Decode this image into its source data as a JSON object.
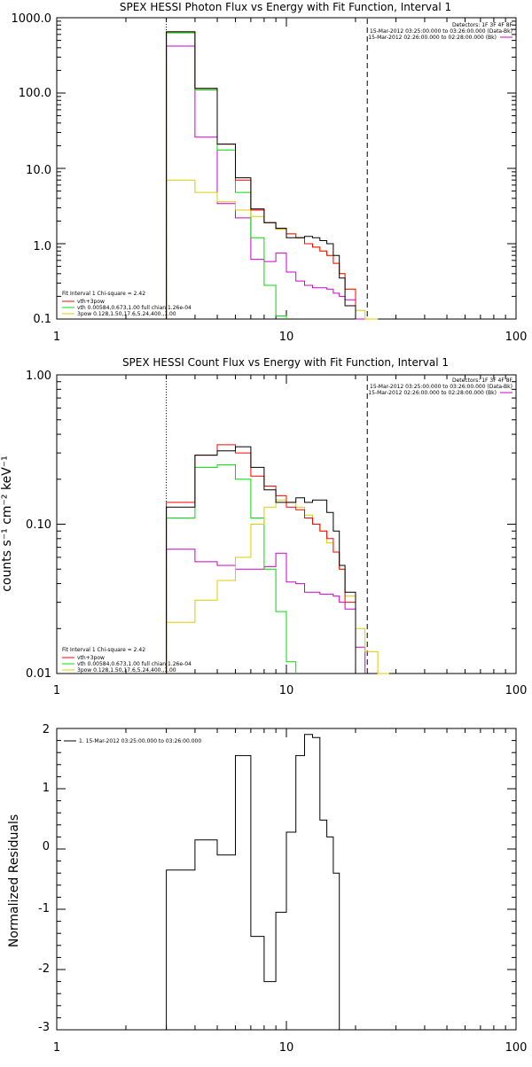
{
  "chart_data": [
    {
      "type": "line",
      "title": "SPEX HESSI Photon Flux vs Energy with Fit Function, Interval 1",
      "xlabel": "",
      "ylabel": "",
      "xscale": "log",
      "yscale": "log",
      "xlim": [
        1,
        100
      ],
      "ylim": [
        0.1,
        1000
      ],
      "x_ticks": [
        "1",
        "10",
        "100"
      ],
      "y_ticks": [
        "0.1",
        "1.0",
        "10.0",
        "100.0",
        "1000.0"
      ],
      "header_lines": [
        "Detectors: 1F 3F 4F 8F",
        "15-Mar-2012 03:25:00.000 to 03:26:00.000 (Data-Bk)",
        "15-Mar-2012 02:26:00.000 to 02:28:00.000 (Bk)"
      ],
      "header_colors": [
        "#000000",
        "#000000",
        "#cc00cc"
      ],
      "legend_lines": [
        "Fit Interval 1   Chi-square = 2.42",
        "vth+3pow",
        "vth 0.00584,0.673,1.00   full chian 1.26e-04",
        "3pow 0.128,1.50,17.6,5.24,400.,1.00"
      ],
      "legend_colors": [
        "#000000",
        "#ff0000",
        "#00dd00",
        "#ddcc00"
      ],
      "vlines": {
        "dotted": 3.0,
        "dashed": 22.5
      },
      "bin_edges": [
        3,
        4,
        5,
        6,
        7,
        8,
        9,
        10,
        11,
        12,
        13,
        14,
        15,
        16,
        17,
        18,
        20,
        22,
        25
      ],
      "series": [
        {
          "color": "#000000",
          "values": [
            650,
            115,
            21,
            7.5,
            2.9,
            1.9,
            1.6,
            1.2,
            1.2,
            1.25,
            1.2,
            1.1,
            1.0,
            0.7,
            0.35,
            0.15,
            null,
            null
          ]
        },
        {
          "color": "#ff0000",
          "values": [
            650,
            115,
            21,
            7.0,
            2.8,
            1.9,
            1.6,
            1.35,
            1.2,
            1.0,
            0.9,
            0.8,
            0.7,
            0.55,
            0.4,
            0.25,
            null,
            null
          ]
        },
        {
          "color": "#00dd00",
          "values": [
            630,
            110,
            17.5,
            4.8,
            1.2,
            0.28,
            0.11,
            null,
            null,
            null,
            null,
            null,
            null,
            null,
            null,
            null,
            null,
            null
          ]
        },
        {
          "color": "#ddcc00",
          "values": [
            7.0,
            4.8,
            3.6,
            2.8,
            2.3,
            1.9,
            1.55,
            1.35,
            1.2,
            1.0,
            0.9,
            0.8,
            0.7,
            0.55,
            0.4,
            0.25,
            0.13,
            0.1
          ]
        },
        {
          "color": "#cc00cc",
          "values": [
            420,
            26,
            3.4,
            2.2,
            0.62,
            0.58,
            0.75,
            0.42,
            0.32,
            0.28,
            0.26,
            0.26,
            0.25,
            0.22,
            0.2,
            0.18,
            0.1,
            null
          ]
        }
      ]
    },
    {
      "type": "line",
      "title": "SPEX HESSI Count Flux vs Energy with Fit Function, Interval 1",
      "xlabel": "",
      "ylabel": "counts s⁻¹ cm⁻² keV⁻¹",
      "xscale": "log",
      "yscale": "log",
      "xlim": [
        1,
        100
      ],
      "ylim": [
        0.01,
        1.0
      ],
      "x_ticks": [
        "1",
        "10",
        "100"
      ],
      "y_ticks": [
        "0.01",
        "0.10",
        "1.00"
      ],
      "header_lines": [
        "Detectors: 1F 3F 4F 8F",
        "15-Mar-2012 03:25:00.000 to 03:26:00.000 (Data-Bk)",
        "15-Mar-2012 02:26:00.000 to 02:28:00.000 (Bk)"
      ],
      "header_colors": [
        "#000000",
        "#000000",
        "#cc00cc"
      ],
      "legend_lines": [
        "Fit Interval 1   Chi-square = 2.42",
        "vth+3pow",
        "vth 0.00584,0.673,1.00   full chian 1.26e-04",
        "3pow 0.128,1.50,17.6,5.24,400.,1.00"
      ],
      "legend_colors": [
        "#000000",
        "#ff0000",
        "#00dd00",
        "#ddcc00"
      ],
      "vlines": {
        "dotted": 3.0,
        "dashed": 22.5
      },
      "bin_edges": [
        3,
        4,
        5,
        6,
        7,
        8,
        9,
        10,
        11,
        12,
        13,
        14,
        15,
        16,
        17,
        18,
        20,
        22,
        25,
        28
      ],
      "series": [
        {
          "color": "#000000",
          "values": [
            0.13,
            0.29,
            0.31,
            0.33,
            0.24,
            0.17,
            0.14,
            0.14,
            0.15,
            0.14,
            0.145,
            0.145,
            0.12,
            0.09,
            0.053,
            0.035,
            null,
            null,
            null
          ]
        },
        {
          "color": "#ff0000",
          "values": [
            0.14,
            0.29,
            0.34,
            0.3,
            0.21,
            0.18,
            0.155,
            0.13,
            0.125,
            0.11,
            0.1,
            0.09,
            0.08,
            0.065,
            0.05,
            0.03,
            null,
            null,
            null
          ]
        },
        {
          "color": "#00dd00",
          "values": [
            0.11,
            0.24,
            0.25,
            0.2,
            0.11,
            0.05,
            0.026,
            0.012,
            null,
            null,
            null,
            null,
            null,
            null,
            null,
            null,
            null,
            null,
            null
          ]
        },
        {
          "color": "#ddcc00",
          "values": [
            0.022,
            0.031,
            0.042,
            0.06,
            0.1,
            0.13,
            0.145,
            0.14,
            0.13,
            0.115,
            0.1,
            0.09,
            0.075,
            0.065,
            0.05,
            0.033,
            0.02,
            0.014,
            0.01
          ]
        },
        {
          "color": "#cc00cc",
          "values": [
            0.068,
            0.056,
            0.053,
            0.05,
            0.05,
            0.052,
            0.064,
            0.041,
            0.04,
            0.035,
            0.035,
            0.034,
            0.034,
            0.033,
            0.03,
            0.027,
            0.015,
            null,
            null
          ]
        }
      ]
    },
    {
      "type": "line",
      "title": "",
      "xlabel": "",
      "ylabel": "Normalized Residuals",
      "xscale": "log",
      "yscale": "linear",
      "xlim": [
        1,
        100
      ],
      "ylim": [
        -3,
        2
      ],
      "x_ticks": [
        "1",
        "10",
        "100"
      ],
      "y_ticks": [
        "-3",
        "-2",
        "-1",
        "0",
        "1",
        "2"
      ],
      "legend_lines": [
        "1. 15-Mar-2012 03:25:00.000 to 03:26:00.000"
      ],
      "legend_colors": [
        "#000000"
      ],
      "bin_edges": [
        3,
        4,
        5,
        6,
        7,
        8,
        9,
        10,
        11,
        12,
        13,
        14,
        15,
        16,
        17,
        18,
        20,
        22
      ],
      "series": [
        {
          "color": "#000000",
          "values": [
            -0.35,
            0.15,
            -0.1,
            1.55,
            -1.45,
            -2.2,
            -1.05,
            0.28,
            1.55,
            1.9,
            1.85,
            0.48,
            0.2,
            -0.4,
            null,
            null,
            null
          ]
        }
      ]
    }
  ]
}
